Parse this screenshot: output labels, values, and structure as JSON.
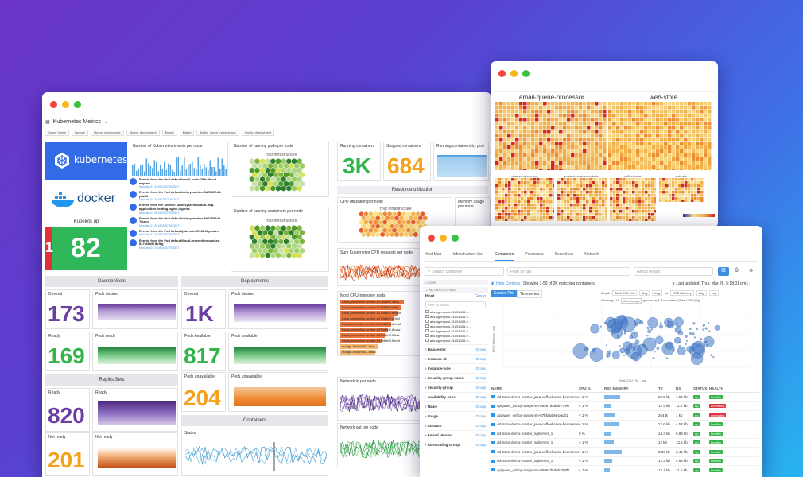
{
  "dashboard": {
    "title": "Kubernetes Metrics",
    "filters": [
      "Saved Views",
      "$scope",
      "$kube_namespace",
      "$kube_deployment",
      "$node",
      "$label",
      "$daily_name_namespace",
      "$daily_deployment"
    ],
    "logo_k8s": "kubernetes",
    "logo_docker": "docker",
    "kubelets_label": "Kubelets up",
    "kubelets_value": "82",
    "kubelets_down": "1",
    "events_per_node": "Number of Kubernetes events per node",
    "running_pods_per_node_1": "Number of running pods per node",
    "running_pods_per_node_2": "Number of running containers per node",
    "your_infra": "Your infrastructure",
    "events": [
      {
        "t": "Events from the Pod default/email-redis-799c4bccd-mqdxw",
        "d": "Mon Jan 01 2019 10:37:00 GMT"
      },
      {
        "t": "Events from the Pod default/celery-worker-5d67607d8-p8w9t",
        "d": "Mon Jan 01 2019 10:37:00 GMT"
      },
      {
        "t": "Events from the Service kube-system/addon-http-application-routing-nginx-ingress",
        "d": "Mon Jan 01 2019 10:37:00 GMT"
      },
      {
        "t": "Events from the Pod default/celery-worker-5d67607d8-7fsdm",
        "d": "Mon Jan 01 2019 10:37:00 GMT"
      },
      {
        "t": "Events from the Pod default/jobs-site-5fc6b6f-pwtwn",
        "d": "Mon Jan 01 2019 10:37:00 GMT"
      },
      {
        "t": "Events from the Pod default/fraud-prevention-worker-847fd8b9f-8vfkg",
        "d": "Mon Jan 01 2019 10:37:00 GMT"
      }
    ],
    "running_containers_label": "Running containers",
    "running_containers": "3K",
    "stopped_containers_label": "Stopped containers",
    "stopped_containers": "684",
    "running_by_pod": "Running containers by pod",
    "resource_util": "Resource utilization",
    "cpu_per_node": "CPU utilization per node",
    "mem_per_node": "Memory usage per node",
    "sum_cpu_requests": "Sum Kubernetes CPU requests per node",
    "most_cpu_pods": "Most CPU-intensive pods",
    "cpu_pods": [
      "fraud-prevention-worker-847fd8b9f-lmnq",
      "fraud-prevention-worker-847fd8b9f-e88jl",
      "fraud-prevention-worker-847fd8b9f-w9d5k",
      "fraud-prevention-worker-847fd8b9f-qr5wf",
      "fraud-prevention-worker-847fd8b9f-dzhw2",
      "fraud-prevention-worker-847fd8b9f-8nvfw",
      "fraud-prevention-worker-847fd8b9f-fk5ss",
      "fraud-prevention-worker-847fd8b9f-5nmrl",
      "mongo-5fc6b9d47-lhxtt",
      "mongo-5fc6b9d47-8fkqo"
    ],
    "net_in": "Network in per node",
    "net_out": "Network out per node",
    "daemonsets": "DaemonSets",
    "deployments": "Deployments",
    "replicasets": "ReplicaSets",
    "containers": "Containers",
    "desired_label": "Desired",
    "desired": "173",
    "pods_desired": "Pods desired",
    "pods_desired_val": "1K",
    "ready_label": "Ready",
    "ready": "169",
    "pods_ready": "Pods ready",
    "pods_available_label": "Pods Available",
    "pods_available": "817",
    "pods_available_chart": "Pods available",
    "pods_unavailable_label": "Pods unavailable",
    "pods_unavailable": "204",
    "pods_unavailable_chart": "Pods unavailable",
    "rs_ready_label": "Ready",
    "rs_ready": "820",
    "rs_ready_chart": "Ready",
    "not_ready_label": "Not ready",
    "not_ready": "201",
    "net_ready": "Not ready",
    "states": "States"
  },
  "hostmap": {
    "email": "email-queue-processor",
    "web": "web-store",
    "subs": [
      "chaos-engineering",
      "product-recommendation",
      "coffeehouse",
      "coin-site"
    ]
  },
  "containers": {
    "tabs": [
      "Host Map",
      "Infrastructure List",
      "Containers",
      "Processes",
      "Serverless",
      "Network"
    ],
    "search_placeholder": "Search container",
    "filter_placeholder": "Filter by tag",
    "group_placeholder": "Group by tag",
    "core": "CORE",
    "autodetecting": "AUTODETECTING",
    "hide_controls": "Hide Controls",
    "showing": "Showing 1-50 of 2K matching containers",
    "last_updated": "Last updated: Thur, Mar 26, 5:18:01 pm",
    "host": "Host",
    "host_filter": "Filter by values",
    "hosts": [
      "aks-agentpool-21851434-v...",
      "aks-agentpool-21851434-v...",
      "aks-agentpool-21851434-v...",
      "aks-agentpool-21851434-v...",
      "aks-agentpool-21851434-v...",
      "aks-agentpool-21851434-v...",
      "aks-agentpool-21851434-v..."
    ],
    "facets": [
      "Datacenter",
      "Instance-id",
      "Instance-type",
      "Security-group-name",
      "Security-group",
      "Availability-zone",
      "Name",
      "Image",
      "Account",
      "Kernel Version",
      "Autoscaling Group"
    ],
    "group_label": "Group",
    "view_scatter": "Scatter Plot",
    "view_timeseries": "Timeseries",
    "graph_label": "Graph",
    "x_metric": "Total CPU (%)",
    "avg": "Avg",
    "log": "Log",
    "vs": "vs",
    "y_metric": "RSS Memory",
    "showing_tag": "Showing 1x1",
    "tag": "short_image",
    "grouped": "groups by & Auto metric (Total CPU (%))",
    "axis_y": "RSS Memory - log",
    "axis_x": "Total CPU (%) - log",
    "xticks": [
      "1e-3",
      "0.01",
      "0.1",
      "1",
      "10",
      "100"
    ],
    "cols": [
      "NAME",
      "CPU %",
      "RSS MEMORY",
      "TX",
      "RX",
      "STATUS",
      "HEALTH"
    ],
    "rows": [
      {
        "name": "dd-trace-demo-master_java-coffeehouse-beanserver_1",
        "cpu": "< 1 %",
        "mem": "",
        "tx": "20.5 kb",
        "rx": "4.94 kb",
        "status": "up",
        "health": "healthy"
      },
      {
        "name": "apigwws_eshop-apigwmm-85967d5d6b-7y9fz",
        "cpu": "< 1 %",
        "mem": "",
        "tx": "12.4 kb",
        "rx": "11.6 kb",
        "status": "up",
        "health": "unhealthy"
      },
      {
        "name": "apigwws_eshop-apigwmm-87bfa5d94-pgg01",
        "cpu": "< 1 %",
        "mem": "",
        "tx": "264 B",
        "rx": "1 kb",
        "status": "up",
        "health": "unhealthy"
      },
      {
        "name": "dd-trace-demo-master_java-coffeehouse-beanserver_1",
        "cpu": "< 1 %",
        "mem": "",
        "tx": "12.6 kb",
        "rx": "4.52 kb",
        "status": "up",
        "health": "healthy"
      },
      {
        "name": "dd-trace-demo-master_sqlserver_1",
        "cpu": "0 %",
        "mem": "",
        "tx": "14.3 kb",
        "rx": "6.83 kb",
        "status": "up",
        "health": "healthy"
      },
      {
        "name": "dd-trace-demo-master_sqlserver_1",
        "cpu": "< 1 %",
        "mem": "",
        "tx": "12 kb",
        "rx": "12.6 kb",
        "status": "up",
        "health": "healthy"
      },
      {
        "name": "dd-trace-demo-master_java-coffeehouse-beanserver_1",
        "cpu": "< 1 %",
        "mem": "",
        "tx": "8.63 kb",
        "rx": "3.45 kb",
        "status": "up",
        "health": "healthy"
      },
      {
        "name": "dd-trace-demo-master_sqlserver_1",
        "cpu": "< 1 %",
        "mem": "",
        "tx": "12.2 kb",
        "rx": "4.98 kb",
        "status": "up",
        "health": "healthy"
      },
      {
        "name": "apigwws_eshop-apigwmm-85967d5d6b-7y9fz",
        "cpu": "< 1 %",
        "mem": "",
        "tx": "12.4 kb",
        "rx": "11.6 kb",
        "status": "up",
        "health": "healthy"
      }
    ]
  }
}
